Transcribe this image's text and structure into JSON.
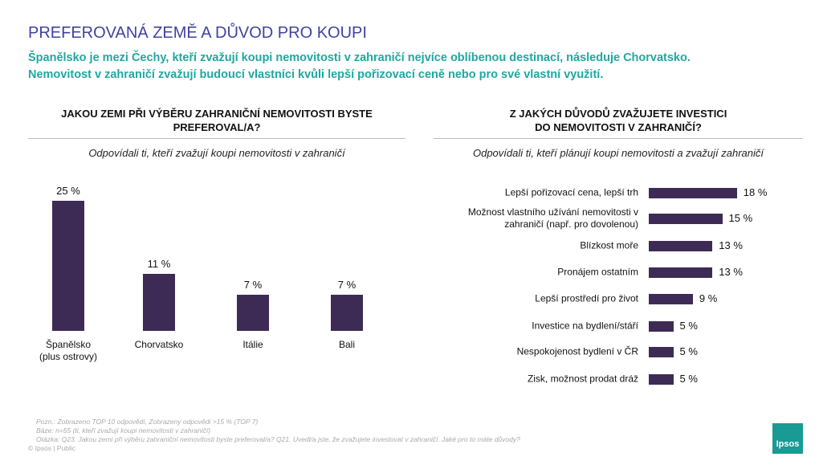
{
  "header": {
    "title": "PREFEROVANÁ ZEMĚ A DŮVOD PRO KOUPI",
    "subtitle": [
      "Španělsko je mezi Čechy, kteří zvažují koupi nemovitosti v zahraničí nejvíce oblíbenou destinací, následuje Chorvatsko.",
      "Nemovitost v zahraničí zvažují budoucí vlastníci kvůli lepší pořizovací ceně nebo pro své vlastní využití."
    ]
  },
  "chart_data": [
    {
      "type": "bar",
      "title": "JAKOU ZEMI PŘI VÝBĚRU ZAHRANIČNÍ NEMOVITOSTI BYSTE\nPREFEROVAL/A?",
      "subtitle": "Odpovídali ti, kteří zvažují koupi nemovitosti v zahraničí",
      "categories": [
        "Španělsko\n(plus ostrovy)",
        "Chorvatsko",
        "Itálie",
        "Bali"
      ],
      "values": [
        25,
        11,
        7,
        7
      ],
      "value_labels": [
        "25 %",
        "11 %",
        "7 %",
        "7 %"
      ],
      "color": "#3d2b56"
    },
    {
      "type": "barh",
      "title": "Z JAKÝCH DŮVODŮ ZVAŽUJETE INVESTICI\nDO NEMOVITOSTI V ZAHRANIČÍ?",
      "subtitle": "Odpovídali ti, kteří plánují koupi nemovitosti a zvažují zahraničí",
      "categories": [
        "Lepší pořizovací cena, lepší trh",
        "Možnost vlastního užívání nemovitosti v\nzahraničí (např. pro dovolenou)",
        "Blízkost moře",
        "Pronájem ostatním",
        "Lepší prostředí pro život",
        "Investice na bydlení/stáří",
        "Nespokojenost bydlení v ČR",
        "Zisk, možnost prodat dráž"
      ],
      "values": [
        18,
        15,
        13,
        13,
        9,
        5,
        5,
        5
      ],
      "value_labels": [
        "18 %",
        "15 %",
        "13 %",
        "13 %",
        "9 %",
        "5 %",
        "5 %",
        "5 %"
      ],
      "color": "#3d2b56"
    }
  ],
  "footer": {
    "notes": [
      "Pozn.: Zobrazeno TOP 10 odpovědí, Zobrazeny odpovědi >15 % (TOP 7)",
      "Báze: n=55 (ti, kteří zvažují koupi nemovitosti v zahraničí)",
      "Otázka: Q23. Jakou zemi při výběru zahraniční nemovitosti byste preferoval/a? Q21. Uvedl/a jste, že zvažujete investovat v zahraničí. Jaké pro to máte důvody?",
      "© Ipsos | Public"
    ],
    "logo": "Ipsos"
  }
}
